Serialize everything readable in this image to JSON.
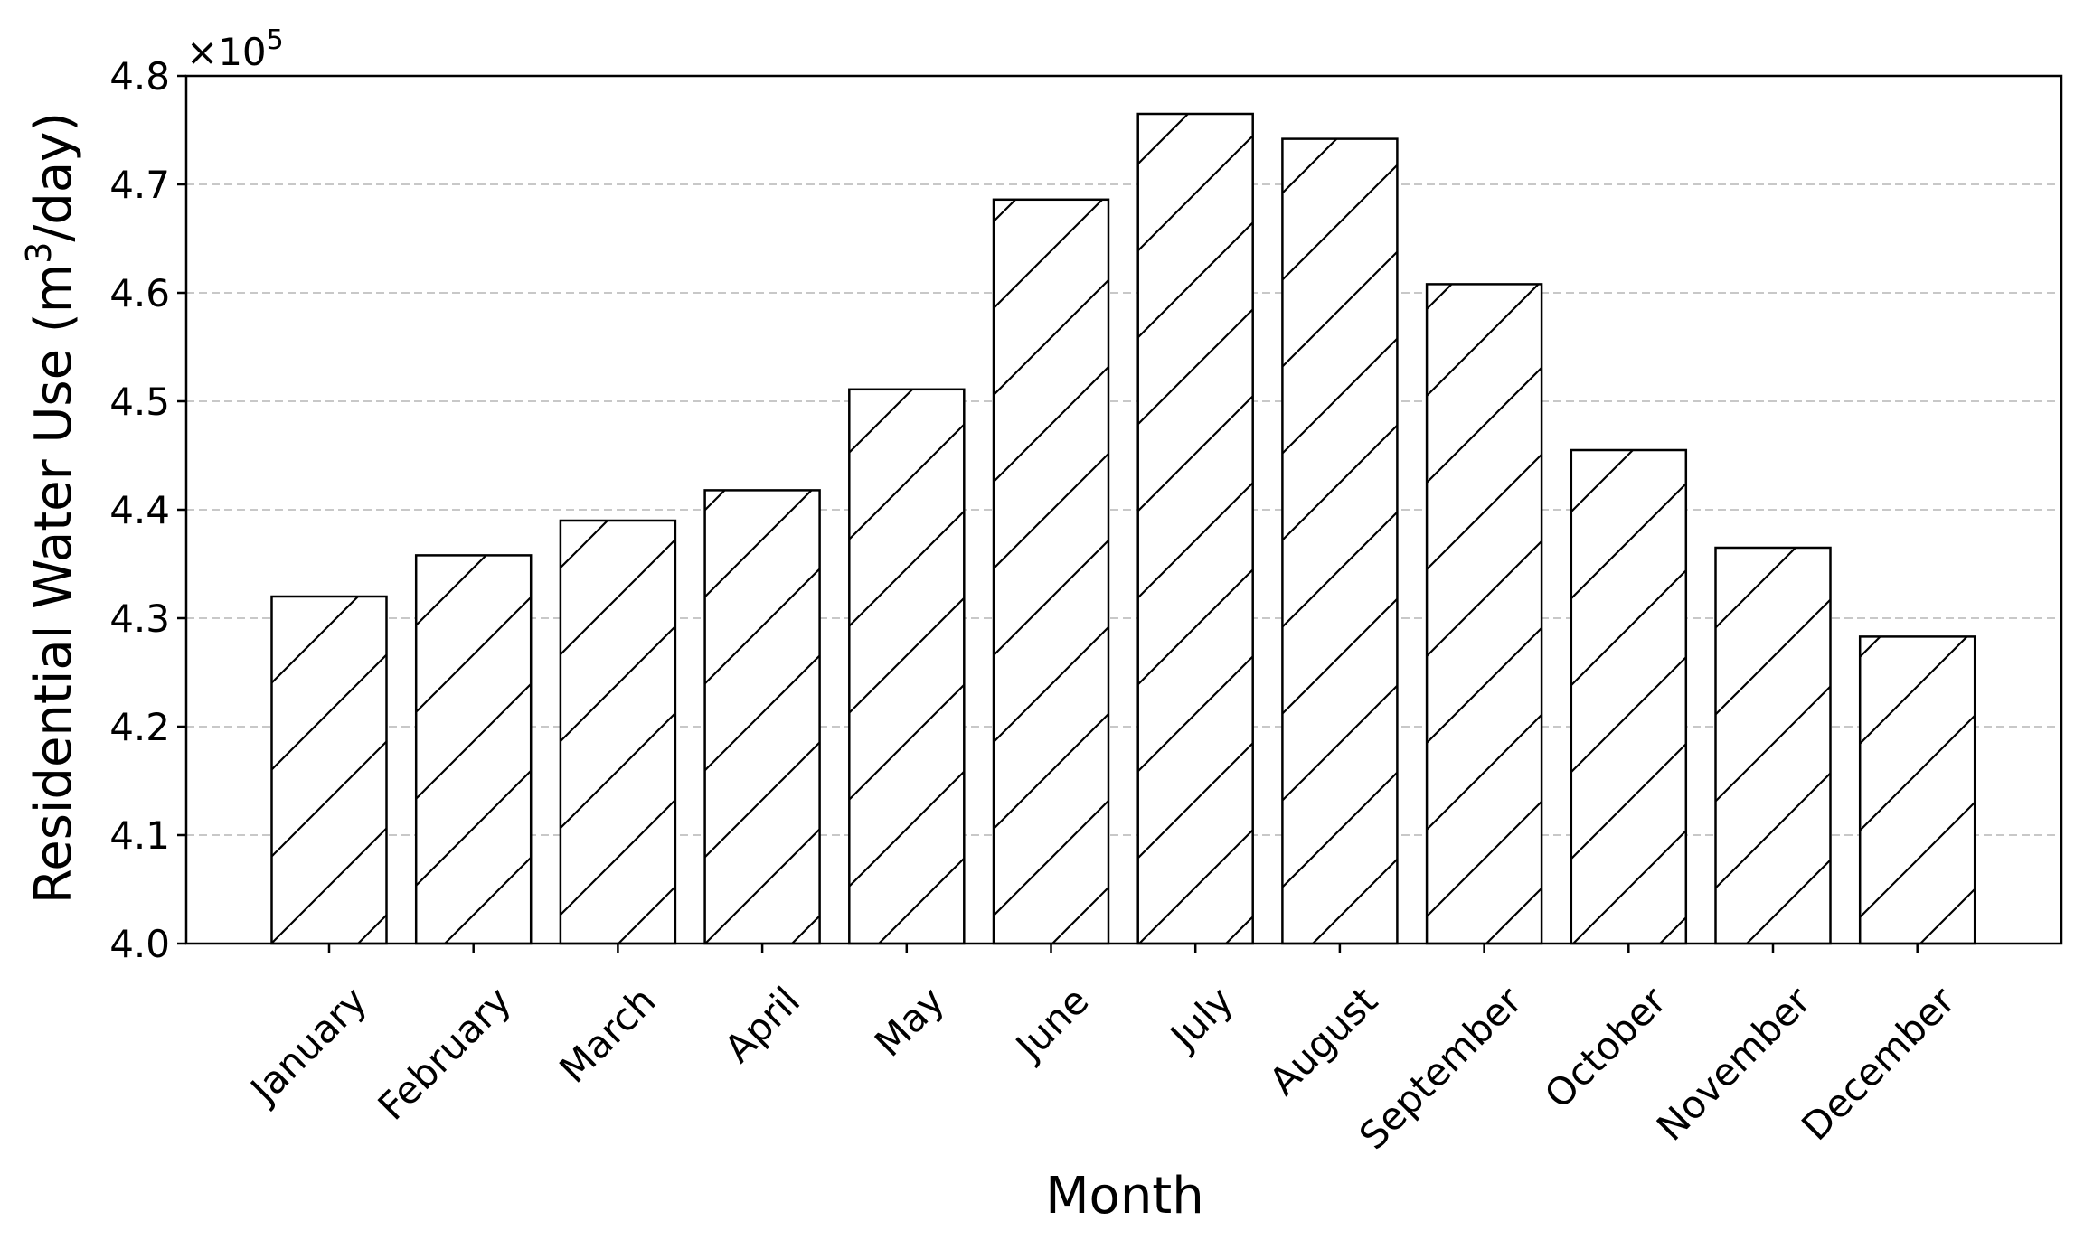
{
  "chart_data": {
    "type": "bar",
    "title": "",
    "xlabel": "Month",
    "ylabel": "Residential Water Use (m",
    "ylabel_superscript": "3",
    "ylabel_suffix": "/day)",
    "y_multiplier_prefix": "×10",
    "y_multiplier_exponent": "5",
    "categories": [
      "January",
      "February",
      "March",
      "April",
      "May",
      "June",
      "July",
      "August",
      "September",
      "October",
      "November",
      "December"
    ],
    "values": [
      4.32,
      4.358,
      4.39,
      4.418,
      4.511,
      4.686,
      4.765,
      4.742,
      4.608,
      4.455,
      4.365,
      4.283
    ],
    "ylim": [
      4.0,
      4.8
    ],
    "yticks": [
      4.0,
      4.1,
      4.2,
      4.3,
      4.4,
      4.5,
      4.6,
      4.7,
      4.8
    ],
    "ytick_labels": [
      "4.0",
      "4.1",
      "4.2",
      "4.3",
      "4.4",
      "4.5",
      "4.6",
      "4.7",
      "4.8"
    ],
    "grid": "y-dashed",
    "legend": "none",
    "bar_fill": "#ffffff",
    "bar_edge": "#000000",
    "bar_hatch": "diagonal",
    "grid_color": "#c8c8c8"
  }
}
